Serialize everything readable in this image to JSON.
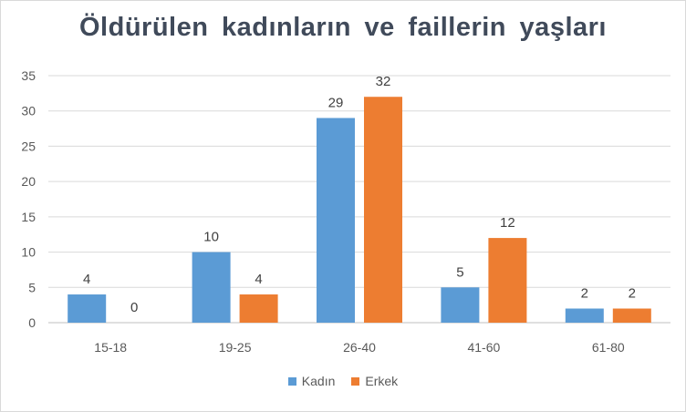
{
  "chart_data": {
    "type": "bar",
    "title": "Öldürülen kadınların ve faillerin yaşları",
    "categories": [
      "15-18",
      "19-25",
      "26-40",
      "41-60",
      "61-80"
    ],
    "series": [
      {
        "name": "Kadın",
        "values": [
          4,
          10,
          29,
          5,
          2
        ],
        "color": "#5b9bd5"
      },
      {
        "name": "Erkek",
        "values": [
          0,
          4,
          32,
          12,
          2
        ],
        "color": "#ed7d31"
      }
    ],
    "xlabel": "",
    "ylabel": "",
    "ylim": [
      0,
      35
    ],
    "yticks": [
      0,
      5,
      10,
      15,
      20,
      25,
      30,
      35
    ],
    "grid": true,
    "legend": "bottom"
  }
}
